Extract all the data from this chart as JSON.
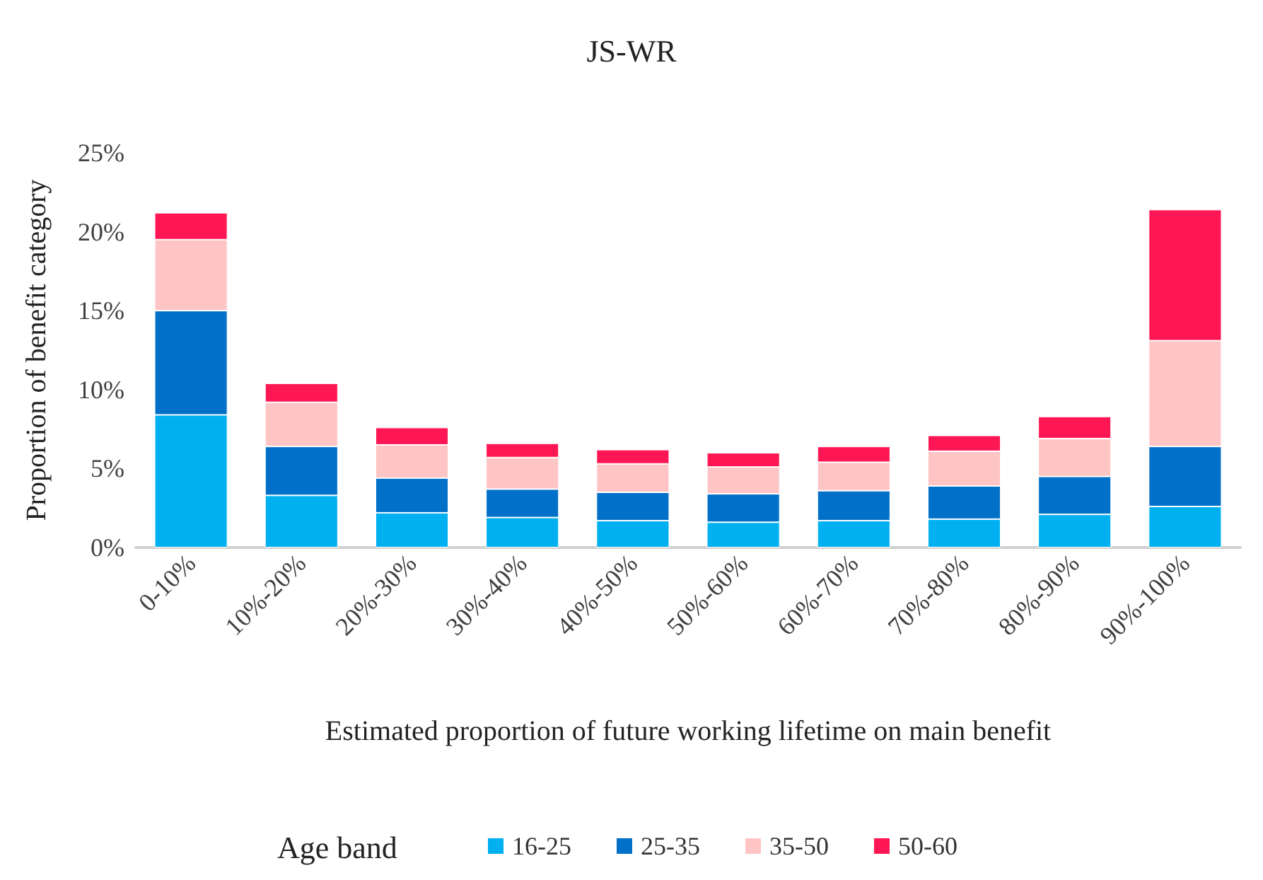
{
  "chart_data": {
    "type": "bar",
    "stacked": true,
    "title": "JS-WR",
    "xlabel": "Estimated proportion of future working lifetime on main benefit",
    "ylabel": "Proportion of benefit category",
    "legend_title": "Age band",
    "legend": "bottom",
    "grid": false,
    "categories": [
      "0-10%",
      "10%-20%",
      "20%-30%",
      "30%-40%",
      "40%-50%",
      "50%-60%",
      "60%-70%",
      "70%-80%",
      "80%-90%",
      "90%-100%"
    ],
    "series": [
      {
        "name": "16-25",
        "color": "#00b0f0",
        "values": [
          8.4,
          3.3,
          2.2,
          1.9,
          1.7,
          1.6,
          1.7,
          1.8,
          2.1,
          2.6
        ]
      },
      {
        "name": "25-35",
        "color": "#0070c8",
        "values": [
          6.6,
          3.1,
          2.2,
          1.8,
          1.8,
          1.8,
          1.9,
          2.1,
          2.4,
          3.8
        ]
      },
      {
        "name": "35-50",
        "color": "#ffc4c4",
        "values": [
          4.5,
          2.8,
          2.1,
          2.0,
          1.8,
          1.7,
          1.8,
          2.2,
          2.4,
          6.7
        ]
      },
      {
        "name": "50-60",
        "color": "#ff1654",
        "values": [
          1.7,
          1.2,
          1.1,
          0.9,
          0.9,
          0.9,
          1.0,
          1.0,
          1.4,
          8.3
        ]
      }
    ],
    "ylim": [
      0,
      25
    ],
    "yticks": [
      {
        "value": 0,
        "label": "0%"
      },
      {
        "value": 5,
        "label": "5%"
      },
      {
        "value": 10,
        "label": "10%"
      },
      {
        "value": 15,
        "label": "15%"
      },
      {
        "value": 20,
        "label": "20%"
      },
      {
        "value": 25,
        "label": "25%"
      }
    ]
  }
}
